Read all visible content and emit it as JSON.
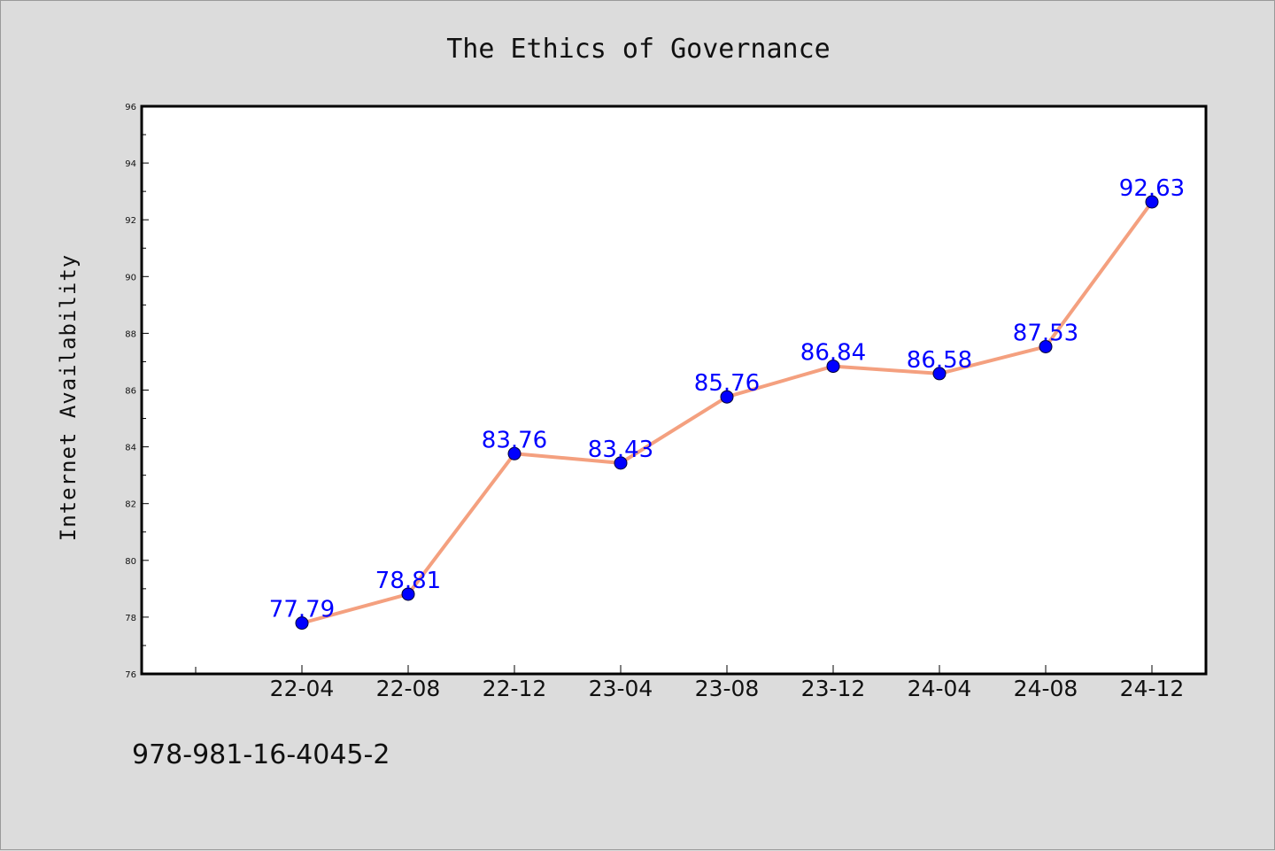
{
  "chart_data": {
    "type": "line",
    "title": "The Ethics of Governance",
    "xlabel": "",
    "ylabel": "Internet Availability",
    "categories": [
      "22-04",
      "22-08",
      "22-12",
      "23-04",
      "23-08",
      "23-12",
      "24-04",
      "24-08",
      "24-12"
    ],
    "series": [
      {
        "values": [
          77.79,
          78.81,
          83.76,
          83.43,
          85.76,
          86.84,
          86.58,
          87.53,
          92.63
        ],
        "line_color": "#f4a07f",
        "marker_color": "#0000ff"
      }
    ],
    "data_labels": [
      "77.79",
      "78.81",
      "83.76",
      "83.43",
      "85.76",
      "86.84",
      "86.58",
      "87.53",
      "92.63"
    ],
    "ylim": [
      76,
      96
    ],
    "yticks": [
      "76",
      "78",
      "80",
      "82",
      "84",
      "86",
      "88",
      "90",
      "92",
      "94",
      "96"
    ],
    "grid": false,
    "legend": "none"
  },
  "footer": {
    "isbn": "978-981-16-4045-2"
  }
}
